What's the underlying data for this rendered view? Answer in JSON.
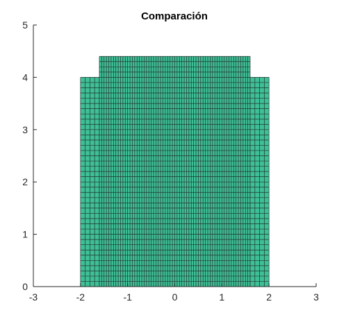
{
  "chart_data": {
    "type": "mesh",
    "title": "Comparación",
    "xlabel": "",
    "ylabel": "",
    "xlim": [
      -3,
      3
    ],
    "ylim": [
      0,
      5
    ],
    "x_ticks": [
      -3,
      -2,
      -1,
      0,
      1,
      2,
      3
    ],
    "y_ticks": [
      0,
      1,
      2,
      3,
      4,
      5
    ],
    "x_tick_labels": [
      "-3",
      "-2",
      "-1",
      "0",
      "1",
      "2",
      "3"
    ],
    "y_tick_labels": [
      "0",
      "1",
      "2",
      "3",
      "4",
      "5"
    ],
    "grid": false,
    "face_color": "#3fbf96",
    "edge_color": "#1a1a1a",
    "regions": [
      {
        "x": [
          -2,
          -1.6
        ],
        "y": [
          0,
          4
        ],
        "nx": 4,
        "ny": 40
      },
      {
        "x": [
          -1.6,
          1.6
        ],
        "y": [
          0,
          4.4
        ],
        "nx": 64,
        "ny": 44
      },
      {
        "x": [
          1.6,
          2
        ],
        "y": [
          0,
          4
        ],
        "nx": 4,
        "ny": 40
      }
    ]
  }
}
